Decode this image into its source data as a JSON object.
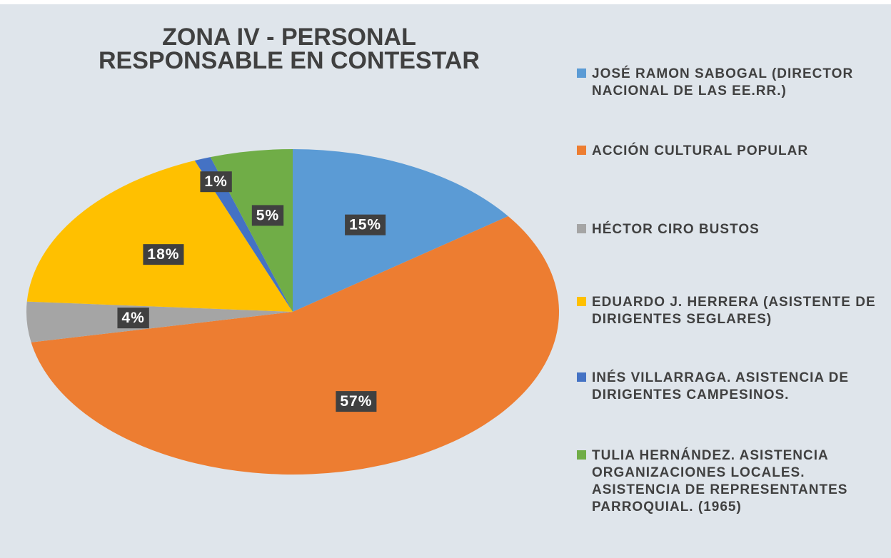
{
  "chart_data": {
    "type": "pie",
    "title": "ZONA IV - PERSONAL RESPONSABLE EN CONTESTAR",
    "categories": [
      "JOSÉ RAMON SABOGAL (DIRECTOR NACIONAL DE LAS EE.RR.)",
      "ACCIÓN CULTURAL POPULAR",
      "HÉCTOR CIRO BUSTOS",
      "EDUARDO J. HERRERA (ASISTENTE DE DIRIGENTES SEGLARES)",
      "INÉS VILLARRAGA. ASISTENCIA DE DIRIGENTES CAMPESINOS.",
      "TULIA HERNÁNDEZ. ASISTENCIA ORGANIZACIONES LOCALES. ASISTENCIA DE REPRESENTANTES PARROQUIAL. (1965)"
    ],
    "values": [
      15,
      57,
      4,
      18,
      1,
      5
    ],
    "value_labels": [
      "15%",
      "57%",
      "4%",
      "18%",
      "1%",
      "5%"
    ],
    "colors": [
      "#5b9bd5",
      "#ed7d31",
      "#a5a5a5",
      "#ffc000",
      "#4472c4",
      "#70ad47"
    ],
    "legend": "right"
  }
}
